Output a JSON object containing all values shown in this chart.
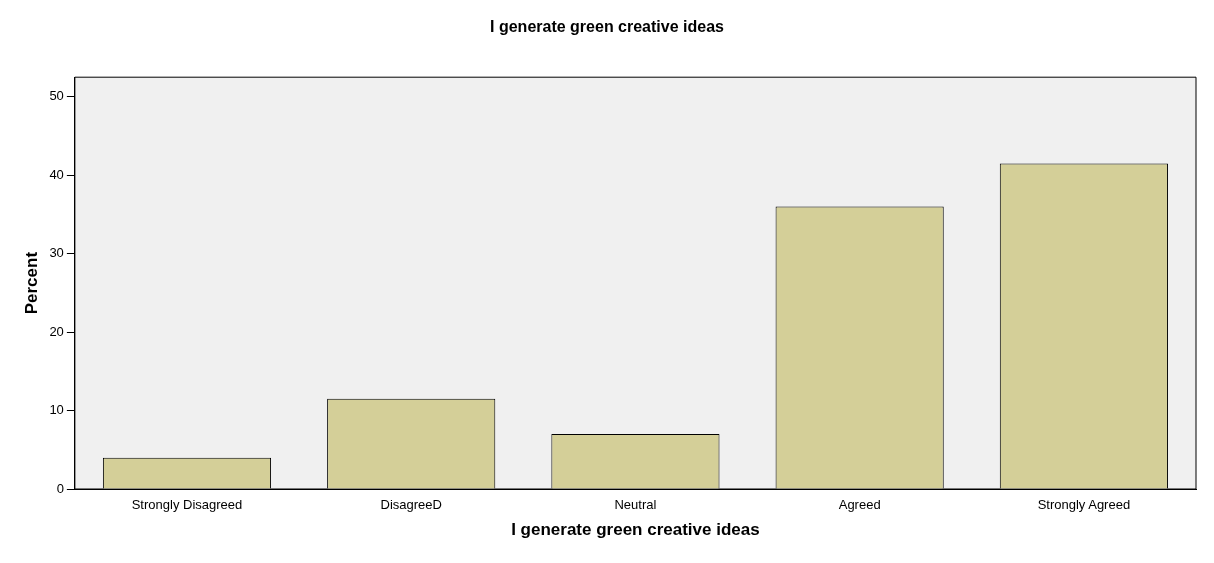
{
  "chart_data": {
    "type": "bar",
    "title": "I generate green creative ideas",
    "xlabel": "I generate green creative ideas",
    "ylabel": "Percent",
    "categories": [
      "Strongly Disagreed",
      "DisagreeD",
      "Neutral",
      "Agreed",
      "Strongly Agreed"
    ],
    "values": [
      4,
      11.5,
      7,
      36,
      41.5
    ],
    "color": "#d4cf98",
    "ylim": [
      0,
      52.5
    ],
    "yticks": [
      0,
      10,
      20,
      30,
      40,
      50
    ],
    "grid": false,
    "legend": false
  }
}
